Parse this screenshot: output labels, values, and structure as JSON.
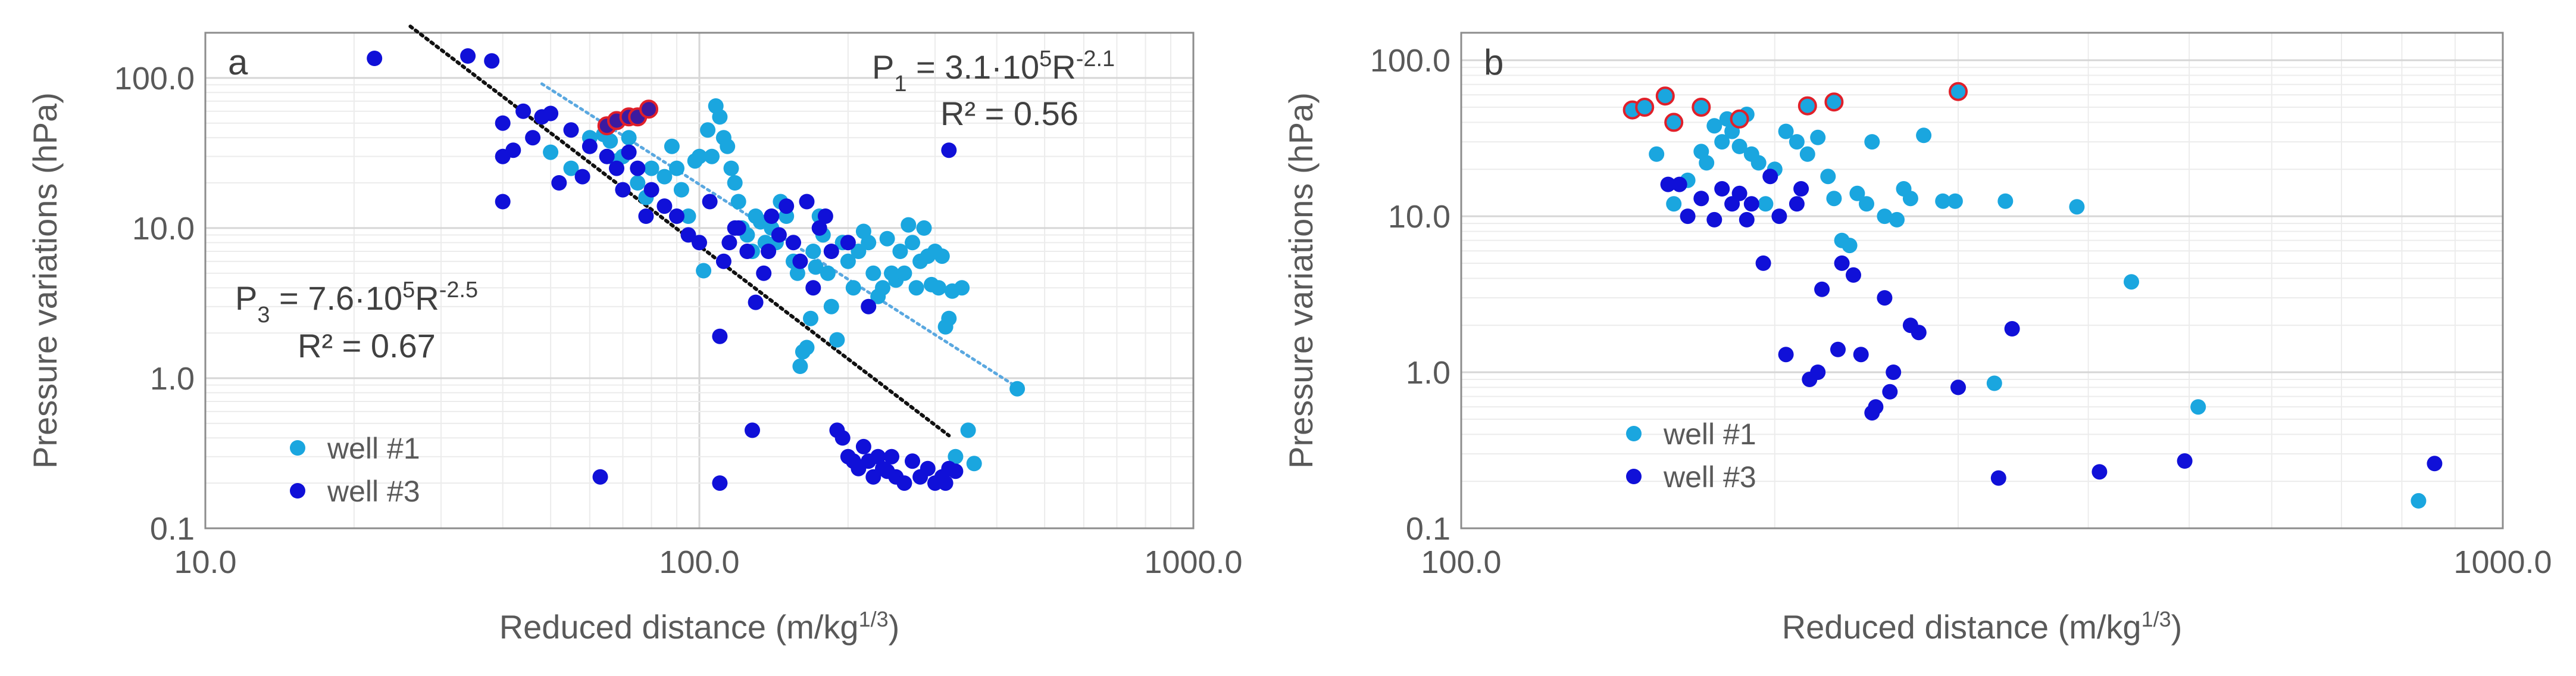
{
  "colors": {
    "well1": "#1aa6df",
    "well3": "#1010d8",
    "highlight_outline": "#e0202a",
    "trend1": "#5aa8e0",
    "trend3": "#111111",
    "grid_major": "#d6d6d6",
    "grid_minor": "#ececec"
  },
  "chart_data": [
    {
      "type": "scatter",
      "panel_label": "a",
      "xlabel": "Reduced distance (m/kg1/3)",
      "xlabel_main": "Reduced distance (m/kg",
      "xlabel_sup": "1/3",
      "xlabel_close": ")",
      "ylabel": "Pressure variations (hPa)",
      "x_scale": "log",
      "y_scale": "log",
      "xlim": [
        10,
        1000
      ],
      "ylim": [
        0.1,
        200
      ],
      "x_ticks": [
        10,
        100,
        1000
      ],
      "x_tick_labels": [
        "10.0",
        "100.0",
        "1000.0"
      ],
      "y_ticks": [
        0.1,
        1,
        10,
        100
      ],
      "y_tick_labels": [
        "0.1",
        "1.0",
        "10.0",
        "100.0"
      ],
      "grid": true,
      "legend": {
        "position": "bottom-left",
        "entries": [
          "well #1",
          "well #3"
        ]
      },
      "annotations": [
        {
          "name": "eq-p1",
          "main": "P",
          "sub": "1",
          "rest": " = 3.1·10",
          "sup": "5",
          "rest2": "R",
          "sup2": "-2.1",
          "r2": "R² = 0.56"
        },
        {
          "name": "eq-p3",
          "main": "P",
          "sub": "3",
          "rest": " = 7.6·10",
          "sup": "5",
          "rest2": "R",
          "sup2": "-2.5",
          "r2": "R² = 0.67"
        }
      ],
      "trendlines": [
        {
          "series": "well #1",
          "a": 310000,
          "b": -2.1,
          "x_range": [
            48,
            450
          ]
        },
        {
          "series": "well #3",
          "a": 760000,
          "b": -2.5,
          "x_range": [
            26,
            320
          ]
        }
      ],
      "series": [
        {
          "name": "well #1",
          "points": [
            [
              50,
              32
            ],
            [
              55,
              25
            ],
            [
              60,
              40
            ],
            [
              64,
              42
            ],
            [
              66,
              38
            ],
            [
              68,
              28
            ],
            [
              70,
              30
            ],
            [
              72,
              40
            ],
            [
              75,
              20
            ],
            [
              78,
              16
            ],
            [
              80,
              25
            ],
            [
              85,
              22
            ],
            [
              88,
              35
            ],
            [
              90,
              25
            ],
            [
              92,
              18
            ],
            [
              95,
              12
            ],
            [
              98,
              28
            ],
            [
              100,
              30
            ],
            [
              102,
              5.2
            ],
            [
              104,
              45
            ],
            [
              106,
              30
            ],
            [
              108,
              65
            ],
            [
              110,
              55
            ],
            [
              112,
              40
            ],
            [
              114,
              35
            ],
            [
              116,
              25
            ],
            [
              118,
              20
            ],
            [
              120,
              15
            ],
            [
              122,
              10
            ],
            [
              125,
              9
            ],
            [
              128,
              7
            ],
            [
              130,
              12
            ],
            [
              133,
              11
            ],
            [
              136,
              8
            ],
            [
              140,
              10
            ],
            [
              143,
              8
            ],
            [
              146,
              15
            ],
            [
              150,
              12
            ],
            [
              155,
              6
            ],
            [
              158,
              5
            ],
            [
              160,
              1.2
            ],
            [
              162,
              1.5
            ],
            [
              165,
              1.6
            ],
            [
              168,
              2.5
            ],
            [
              170,
              7
            ],
            [
              172,
              5.5
            ],
            [
              175,
              12
            ],
            [
              178,
              9
            ],
            [
              182,
              5
            ],
            [
              185,
              3
            ],
            [
              190,
              1.8
            ],
            [
              195,
              8
            ],
            [
              200,
              6
            ],
            [
              205,
              4
            ],
            [
              210,
              7
            ],
            [
              215,
              9.5
            ],
            [
              220,
              8
            ],
            [
              225,
              5
            ],
            [
              230,
              3.5
            ],
            [
              235,
              4
            ],
            [
              240,
              8.5
            ],
            [
              245,
              5
            ],
            [
              250,
              4.5
            ],
            [
              255,
              7
            ],
            [
              260,
              5
            ],
            [
              265,
              10.5
            ],
            [
              270,
              8
            ],
            [
              275,
              4
            ],
            [
              280,
              6
            ],
            [
              285,
              10
            ],
            [
              290,
              6.5
            ],
            [
              295,
              4.2
            ],
            [
              300,
              7
            ],
            [
              305,
              4
            ],
            [
              310,
              6.5
            ],
            [
              315,
              2.2
            ],
            [
              320,
              2.5
            ],
            [
              325,
              3.8
            ],
            [
              330,
              0.3
            ],
            [
              340,
              4
            ],
            [
              350,
              0.45
            ],
            [
              360,
              0.27
            ],
            [
              440,
              0.85
            ]
          ],
          "highlighted": [
            [
              65,
              48
            ],
            [
              68,
              52
            ],
            [
              72,
              55
            ],
            [
              75,
              55
            ],
            [
              79,
              62
            ]
          ]
        },
        {
          "name": "well #3",
          "points": [
            [
              22,
              135
            ],
            [
              34,
              140
            ],
            [
              38,
              130
            ],
            [
              40,
              50
            ],
            [
              40,
              30
            ],
            [
              40,
              15
            ],
            [
              42,
              33
            ],
            [
              44,
              60
            ],
            [
              46,
              40
            ],
            [
              48,
              55
            ],
            [
              50,
              58
            ],
            [
              52,
              20
            ],
            [
              55,
              45
            ],
            [
              58,
              22
            ],
            [
              60,
              35
            ],
            [
              63,
              0.22
            ],
            [
              65,
              30
            ],
            [
              68,
              25
            ],
            [
              70,
              18
            ],
            [
              72,
              32
            ],
            [
              75,
              25
            ],
            [
              78,
              12
            ],
            [
              80,
              18
            ],
            [
              85,
              14
            ],
            [
              90,
              12
            ],
            [
              95,
              9
            ],
            [
              100,
              8
            ],
            [
              105,
              15
            ],
            [
              110,
              0.2
            ],
            [
              110,
              1.9
            ],
            [
              112,
              6
            ],
            [
              115,
              8
            ],
            [
              118,
              10
            ],
            [
              120,
              10
            ],
            [
              125,
              7
            ],
            [
              128,
              0.45
            ],
            [
              130,
              3.2
            ],
            [
              135,
              5
            ],
            [
              138,
              7
            ],
            [
              140,
              12
            ],
            [
              145,
              9
            ],
            [
              150,
              14
            ],
            [
              155,
              8
            ],
            [
              160,
              6
            ],
            [
              165,
              15
            ],
            [
              170,
              4
            ],
            [
              175,
              10
            ],
            [
              180,
              12
            ],
            [
              185,
              7
            ],
            [
              190,
              0.45
            ],
            [
              195,
              0.4
            ],
            [
              200,
              0.3
            ],
            [
              200,
              8
            ],
            [
              205,
              0.28
            ],
            [
              210,
              0.25
            ],
            [
              215,
              0.35
            ],
            [
              220,
              0.28
            ],
            [
              220,
              3
            ],
            [
              225,
              0.22
            ],
            [
              230,
              0.3
            ],
            [
              235,
              0.25
            ],
            [
              240,
              0.24
            ],
            [
              245,
              0.3
            ],
            [
              250,
              0.22
            ],
            [
              260,
              0.2
            ],
            [
              270,
              0.28
            ],
            [
              280,
              0.22
            ],
            [
              290,
              0.25
            ],
            [
              300,
              0.2
            ],
            [
              310,
              0.22
            ],
            [
              315,
              0.2
            ],
            [
              320,
              33
            ],
            [
              320,
              0.25
            ],
            [
              330,
              0.24
            ]
          ],
          "highlighted": []
        }
      ]
    },
    {
      "type": "scatter",
      "panel_label": "b",
      "xlabel": "Reduced distance (m/kg1/3)",
      "xlabel_main": "Reduced distance (m/kg",
      "xlabel_sup": "1/3",
      "xlabel_close": ")",
      "ylabel": "Pressure variations (hPa)",
      "x_scale": "log",
      "y_scale": "log",
      "xlim": [
        100,
        1000
      ],
      "ylim": [
        0.1,
        150
      ],
      "x_ticks": [
        100,
        1000
      ],
      "x_tick_labels": [
        "100.0",
        "1000.0"
      ],
      "y_ticks": [
        0.1,
        1,
        10,
        100
      ],
      "y_tick_labels": [
        "0.1",
        "1.0",
        "10.0",
        "100.0"
      ],
      "grid": true,
      "legend": {
        "position": "bottom-left",
        "entries": [
          "well #1",
          "well #3"
        ]
      },
      "series": [
        {
          "name": "well #1",
          "points": [
            [
              154,
              25
            ],
            [
              160,
              12
            ],
            [
              165,
              17
            ],
            [
              170,
              26
            ],
            [
              172,
              22
            ],
            [
              175,
              38
            ],
            [
              178,
              30
            ],
            [
              180,
              42
            ],
            [
              182,
              35
            ],
            [
              185,
              28
            ],
            [
              188,
              45
            ],
            [
              190,
              25
            ],
            [
              193,
              22
            ],
            [
              196,
              12
            ],
            [
              200,
              20
            ],
            [
              205,
              35
            ],
            [
              210,
              30
            ],
            [
              215,
              25
            ],
            [
              220,
              32
            ],
            [
              225,
              18
            ],
            [
              228,
              13
            ],
            [
              232,
              7
            ],
            [
              236,
              6.5
            ],
            [
              240,
              14
            ],
            [
              245,
              12
            ],
            [
              248,
              30
            ],
            [
              255,
              10
            ],
            [
              262,
              9.5
            ],
            [
              266,
              15
            ],
            [
              270,
              13
            ],
            [
              278,
              33
            ],
            [
              290,
              12.5
            ],
            [
              298,
              12.5
            ],
            [
              325,
              0.85
            ],
            [
              333,
              12.5
            ],
            [
              390,
              11.5
            ],
            [
              440,
              3.8
            ],
            [
              510,
              0.6
            ],
            [
              830,
              0.15
            ]
          ],
          "highlighted": [
            [
              146,
              48
            ],
            [
              150,
              50
            ],
            [
              157,
              59
            ],
            [
              160,
              40
            ],
            [
              170,
              50
            ],
            [
              185,
              42
            ],
            [
              215,
              51
            ],
            [
              228,
              54
            ],
            [
              300,
              63
            ]
          ]
        },
        {
          "name": "well #3",
          "points": [
            [
              158,
              16
            ],
            [
              162,
              16
            ],
            [
              165,
              10
            ],
            [
              170,
              13
            ],
            [
              175,
              9.5
            ],
            [
              178,
              15
            ],
            [
              182,
              12
            ],
            [
              185,
              14
            ],
            [
              188,
              9.5
            ],
            [
              190,
              12
            ],
            [
              195,
              5
            ],
            [
              198,
              18
            ],
            [
              202,
              10
            ],
            [
              205,
              1.3
            ],
            [
              210,
              12
            ],
            [
              212,
              15
            ],
            [
              216,
              0.9
            ],
            [
              220,
              1.0
            ],
            [
              222,
              3.4
            ],
            [
              230,
              1.4
            ],
            [
              232,
              5
            ],
            [
              238,
              4.2
            ],
            [
              242,
              1.3
            ],
            [
              248,
              0.55
            ],
            [
              250,
              0.6
            ],
            [
              255,
              3
            ],
            [
              258,
              0.75
            ],
            [
              260,
              1
            ],
            [
              270,
              2
            ],
            [
              275,
              1.8
            ],
            [
              300,
              0.8
            ],
            [
              328,
              0.21
            ],
            [
              338,
              1.9
            ],
            [
              410,
              0.23
            ],
            [
              495,
              0.27
            ],
            [
              860,
              0.26
            ]
          ],
          "highlighted": []
        }
      ]
    }
  ]
}
